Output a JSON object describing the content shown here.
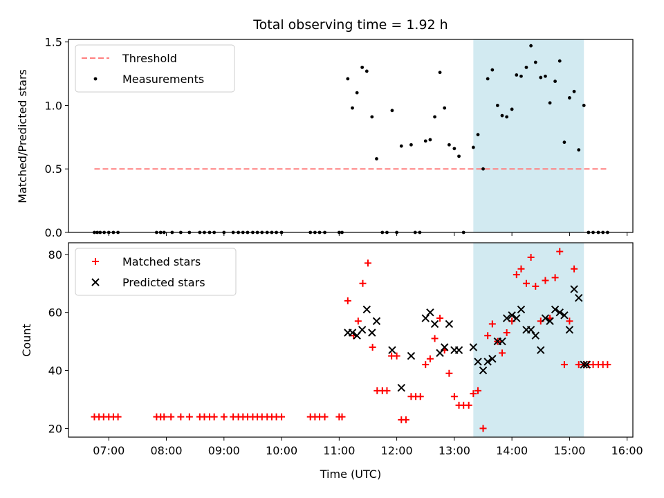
{
  "chart_data": {
    "title": "Total observing time = 1.92 h",
    "xlabel": "Time (UTC)",
    "x_ticks": [
      "07:00",
      "08:00",
      "09:00",
      "10:00",
      "11:00",
      "12:00",
      "13:00",
      "14:00",
      "15:00",
      "16:00"
    ],
    "x_range_hours": [
      6.3,
      16.1
    ],
    "shaded_region_hours": [
      13.33,
      15.25
    ],
    "shade_color": "#add8e6",
    "panels": [
      {
        "type": "scatter",
        "ylabel": "Matched/Predicted stars",
        "ylim": [
          0,
          1.52
        ],
        "y_ticks": [
          0.0,
          0.5,
          1.0,
          1.5
        ],
        "legend": {
          "position": "upper-left",
          "entries": [
            {
              "label": "Threshold",
              "kind": "dashed-line",
              "color": "#ff7f7f"
            },
            {
              "label": "Measurements",
              "kind": "dot",
              "color": "#000000"
            }
          ]
        },
        "threshold": {
          "name": "Threshold",
          "value": 0.5,
          "x_start": 6.75,
          "x_end": 15.65,
          "color": "#ff7f7f"
        },
        "series": [
          {
            "name": "Measurements",
            "color": "#000000",
            "marker": "dot",
            "points": [
              [
                6.75,
                0
              ],
              [
                6.8,
                0
              ],
              [
                6.85,
                0
              ],
              [
                6.92,
                0
              ],
              [
                7.0,
                0
              ],
              [
                7.08,
                0
              ],
              [
                7.16,
                0
              ],
              [
                7.83,
                0
              ],
              [
                7.9,
                0
              ],
              [
                7.96,
                0
              ],
              [
                8.1,
                0
              ],
              [
                8.25,
                0
              ],
              [
                8.4,
                0
              ],
              [
                8.58,
                0
              ],
              [
                8.66,
                0
              ],
              [
                8.75,
                0
              ],
              [
                8.83,
                0
              ],
              [
                9.0,
                0
              ],
              [
                9.16,
                0
              ],
              [
                9.25,
                0
              ],
              [
                9.33,
                0
              ],
              [
                9.41,
                0
              ],
              [
                9.5,
                0
              ],
              [
                9.58,
                0
              ],
              [
                9.66,
                0
              ],
              [
                9.75,
                0
              ],
              [
                9.83,
                0
              ],
              [
                9.91,
                0
              ],
              [
                10.0,
                0
              ],
              [
                10.5,
                0
              ],
              [
                10.58,
                0
              ],
              [
                10.66,
                0
              ],
              [
                10.75,
                0
              ],
              [
                11.0,
                0
              ],
              [
                11.05,
                0
              ],
              [
                11.15,
                1.21
              ],
              [
                11.23,
                0.98
              ],
              [
                11.31,
                1.1
              ],
              [
                11.4,
                1.3
              ],
              [
                11.48,
                1.27
              ],
              [
                11.57,
                0.91
              ],
              [
                11.65,
                0.58
              ],
              [
                11.75,
                0
              ],
              [
                11.83,
                0
              ],
              [
                11.92,
                0.96
              ],
              [
                12.0,
                0
              ],
              [
                12.08,
                0.68
              ],
              [
                12.25,
                0.69
              ],
              [
                12.32,
                0
              ],
              [
                12.4,
                0
              ],
              [
                12.5,
                0.72
              ],
              [
                12.58,
                0.73
              ],
              [
                12.66,
                0.91
              ],
              [
                12.75,
                1.26
              ],
              [
                12.83,
                0.98
              ],
              [
                12.91,
                0.69
              ],
              [
                13.0,
                0.66
              ],
              [
                13.08,
                0.6
              ],
              [
                13.16,
                0
              ],
              [
                13.33,
                0.67
              ],
              [
                13.41,
                0.77
              ],
              [
                13.5,
                0.5
              ],
              [
                13.58,
                1.21
              ],
              [
                13.66,
                1.28
              ],
              [
                13.75,
                1.0
              ],
              [
                13.83,
                0.92
              ],
              [
                13.91,
                0.91
              ],
              [
                14.0,
                0.97
              ],
              [
                14.08,
                1.24
              ],
              [
                14.16,
                1.23
              ],
              [
                14.25,
                1.3
              ],
              [
                14.33,
                1.47
              ],
              [
                14.41,
                1.34
              ],
              [
                14.5,
                1.22
              ],
              [
                14.58,
                1.23
              ],
              [
                14.66,
                1.02
              ],
              [
                14.75,
                1.19
              ],
              [
                14.83,
                1.35
              ],
              [
                14.91,
                0.71
              ],
              [
                15.0,
                1.06
              ],
              [
                15.08,
                1.11
              ],
              [
                15.16,
                0.65
              ],
              [
                15.25,
                1.0
              ],
              [
                15.33,
                0
              ],
              [
                15.41,
                0
              ],
              [
                15.5,
                0
              ],
              [
                15.58,
                0
              ],
              [
                15.66,
                0
              ]
            ]
          }
        ]
      },
      {
        "type": "scatter",
        "ylabel": "Count",
        "ylim": [
          17,
          84
        ],
        "y_ticks": [
          20,
          40,
          60,
          80
        ],
        "legend": {
          "position": "upper-left",
          "entries": [
            {
              "label": "Matched stars",
              "kind": "plus",
              "color": "#ff0000"
            },
            {
              "label": "Predicted stars",
              "kind": "cross",
              "color": "#000000"
            }
          ]
        },
        "series": [
          {
            "name": "Matched stars",
            "color": "#ff0000",
            "marker": "plus",
            "points": [
              [
                6.75,
                24
              ],
              [
                6.83,
                24
              ],
              [
                6.91,
                24
              ],
              [
                7.0,
                24
              ],
              [
                7.08,
                24
              ],
              [
                7.16,
                24
              ],
              [
                7.83,
                24
              ],
              [
                7.9,
                24
              ],
              [
                7.96,
                24
              ],
              [
                8.08,
                24
              ],
              [
                8.25,
                24
              ],
              [
                8.4,
                24
              ],
              [
                8.58,
                24
              ],
              [
                8.66,
                24
              ],
              [
                8.75,
                24
              ],
              [
                8.83,
                24
              ],
              [
                9.0,
                24
              ],
              [
                9.16,
                24
              ],
              [
                9.25,
                24
              ],
              [
                9.33,
                24
              ],
              [
                9.41,
                24
              ],
              [
                9.5,
                24
              ],
              [
                9.58,
                24
              ],
              [
                9.66,
                24
              ],
              [
                9.75,
                24
              ],
              [
                9.83,
                24
              ],
              [
                9.91,
                24
              ],
              [
                10.0,
                24
              ],
              [
                10.5,
                24
              ],
              [
                10.58,
                24
              ],
              [
                10.66,
                24
              ],
              [
                10.75,
                24
              ],
              [
                11.0,
                24
              ],
              [
                11.05,
                24
              ],
              [
                11.15,
                64
              ],
              [
                11.25,
                52
              ],
              [
                11.33,
                57
              ],
              [
                11.41,
                70
              ],
              [
                11.5,
                77
              ],
              [
                11.58,
                48
              ],
              [
                11.66,
                33
              ],
              [
                11.75,
                33
              ],
              [
                11.83,
                33
              ],
              [
                11.91,
                45
              ],
              [
                12.0,
                45
              ],
              [
                12.08,
                23
              ],
              [
                12.16,
                23
              ],
              [
                12.25,
                31
              ],
              [
                12.33,
                31
              ],
              [
                12.41,
                31
              ],
              [
                12.5,
                42
              ],
              [
                12.58,
                44
              ],
              [
                12.66,
                51
              ],
              [
                12.75,
                58
              ],
              [
                12.83,
                47
              ],
              [
                12.91,
                39
              ],
              [
                13.0,
                31
              ],
              [
                13.08,
                28
              ],
              [
                13.16,
                28
              ],
              [
                13.25,
                28
              ],
              [
                13.33,
                32
              ],
              [
                13.41,
                33
              ],
              [
                13.5,
                20
              ],
              [
                13.58,
                52
              ],
              [
                13.66,
                56
              ],
              [
                13.75,
                50
              ],
              [
                13.83,
                46
              ],
              [
                13.91,
                53
              ],
              [
                14.0,
                57
              ],
              [
                14.08,
                73
              ],
              [
                14.16,
                75
              ],
              [
                14.25,
                70
              ],
              [
                14.33,
                79
              ],
              [
                14.41,
                69
              ],
              [
                14.5,
                57
              ],
              [
                14.58,
                71
              ],
              [
                14.66,
                58
              ],
              [
                14.75,
                72
              ],
              [
                14.83,
                81
              ],
              [
                14.91,
                42
              ],
              [
                15.0,
                57
              ],
              [
                15.08,
                75
              ],
              [
                15.16,
                42
              ],
              [
                15.25,
                42
              ],
              [
                15.33,
                42
              ],
              [
                15.41,
                42
              ],
              [
                15.5,
                42
              ],
              [
                15.58,
                42
              ],
              [
                15.66,
                42
              ]
            ]
          },
          {
            "name": "Predicted stars",
            "color": "#000000",
            "marker": "cross",
            "points": [
              [
                11.15,
                53
              ],
              [
                11.23,
                53
              ],
              [
                11.31,
                52
              ],
              [
                11.4,
                54
              ],
              [
                11.48,
                61
              ],
              [
                11.57,
                53
              ],
              [
                11.65,
                57
              ],
              [
                11.92,
                47
              ],
              [
                12.08,
                34
              ],
              [
                12.25,
                45
              ],
              [
                12.5,
                58
              ],
              [
                12.58,
                60
              ],
              [
                12.66,
                56
              ],
              [
                12.75,
                46
              ],
              [
                12.83,
                48
              ],
              [
                12.91,
                56
              ],
              [
                13.0,
                47
              ],
              [
                13.08,
                47
              ],
              [
                13.33,
                48
              ],
              [
                13.41,
                43
              ],
              [
                13.5,
                40
              ],
              [
                13.58,
                43
              ],
              [
                13.66,
                44
              ],
              [
                13.75,
                50
              ],
              [
                13.83,
                50
              ],
              [
                13.91,
                58
              ],
              [
                14.0,
                59
              ],
              [
                14.08,
                58
              ],
              [
                14.16,
                61
              ],
              [
                14.25,
                54
              ],
              [
                14.33,
                54
              ],
              [
                14.41,
                52
              ],
              [
                14.5,
                47
              ],
              [
                14.58,
                58
              ],
              [
                14.66,
                57
              ],
              [
                14.75,
                61
              ],
              [
                14.83,
                60
              ],
              [
                14.91,
                59
              ],
              [
                15.0,
                54
              ],
              [
                15.08,
                68
              ],
              [
                15.16,
                65
              ],
              [
                15.25,
                42
              ],
              [
                15.3,
                42
              ]
            ]
          }
        ]
      }
    ]
  }
}
